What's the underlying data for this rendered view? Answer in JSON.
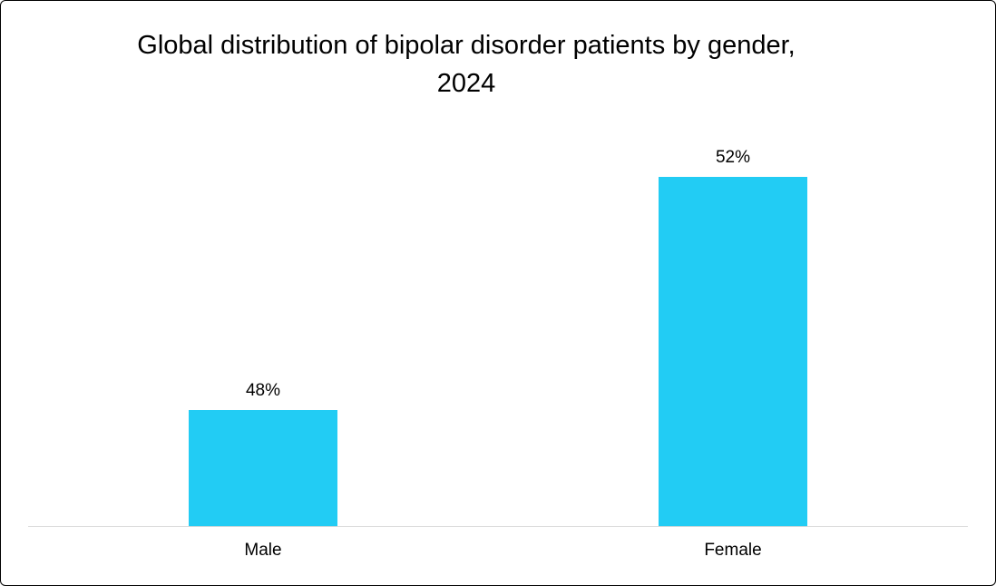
{
  "chart_data": {
    "type": "bar",
    "title": "Global distribution of bipolar disorder patients by gender, 2024",
    "categories": [
      "Male",
      "Female"
    ],
    "values": [
      48,
      52
    ],
    "data_labels": [
      "48%",
      "52%"
    ],
    "ylim": [
      46,
      53
    ],
    "xlabel": "",
    "ylabel": "",
    "grid": false,
    "legend": false,
    "bar_color": "#22CCF4",
    "axis_line_color": "#D9D9D9",
    "background_color": "#FFFFFF",
    "border_color": "#000000"
  }
}
